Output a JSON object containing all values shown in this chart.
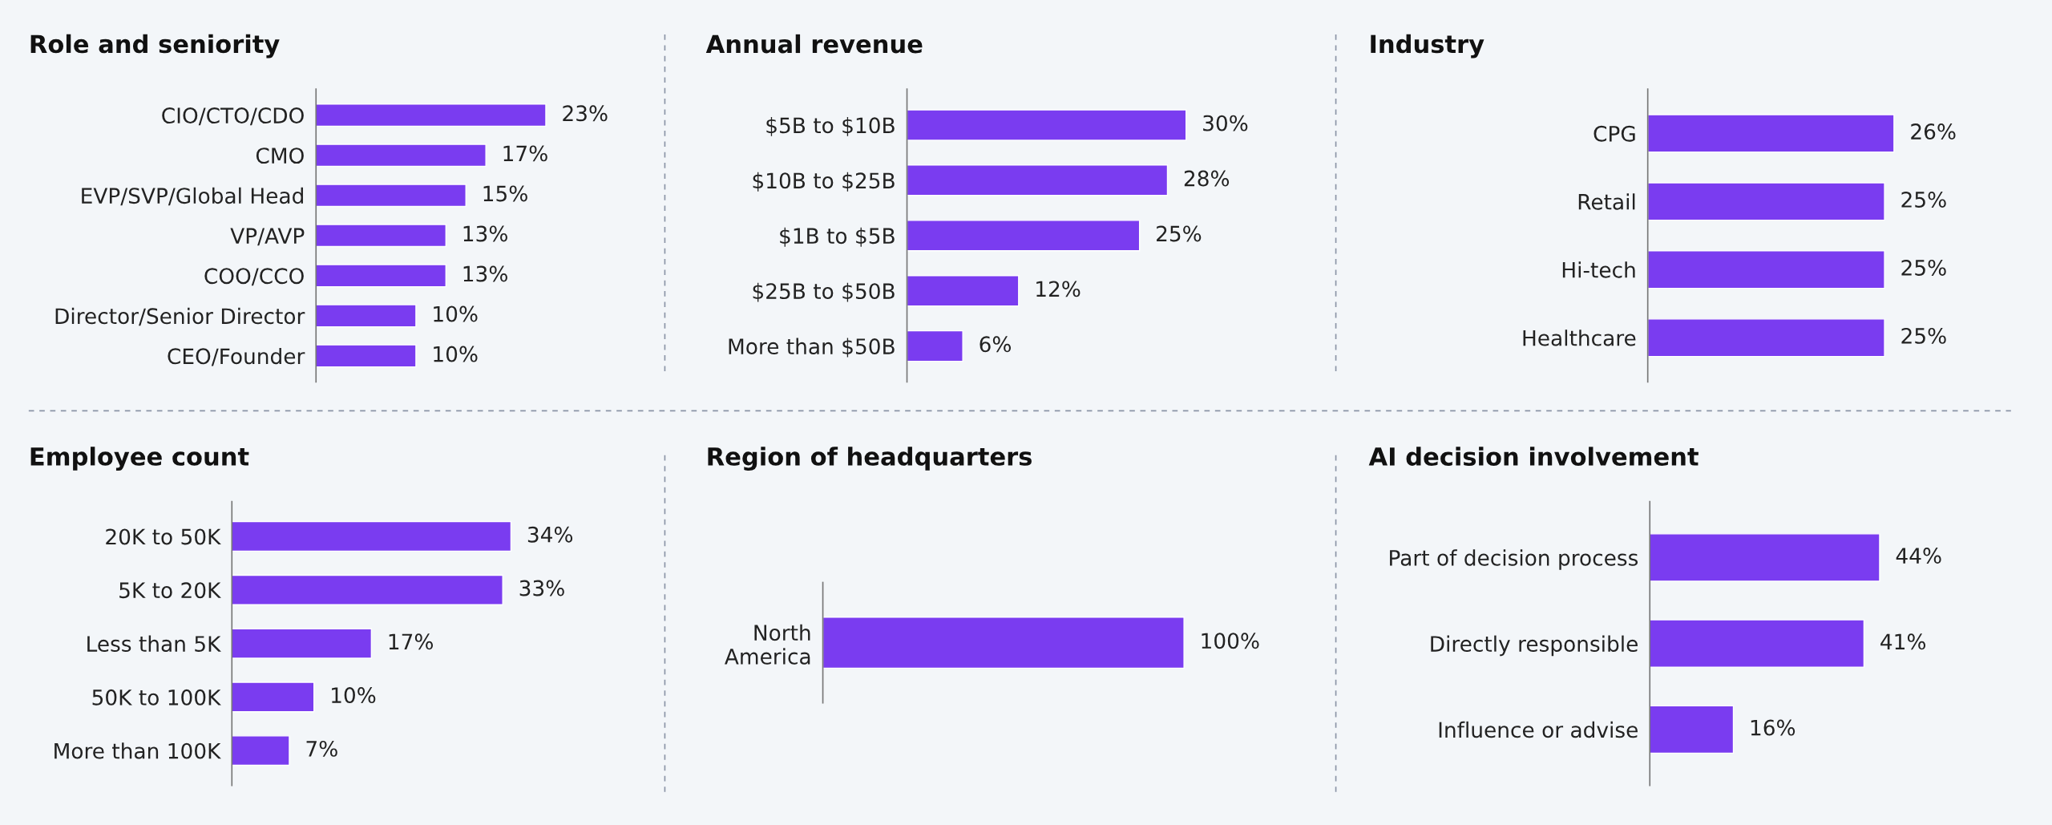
{
  "chart_data": [
    {
      "type": "bar",
      "orientation": "horizontal",
      "title": "Role and seniority",
      "categories": [
        "CIO/CTO/CDO",
        "CMO",
        "EVP/SVP/Global Head",
        "VP/AVP",
        "COO/CCO",
        "Director/Senior Director",
        "CEO/Founder"
      ],
      "values": [
        23,
        17,
        15,
        13,
        13,
        10,
        10
      ],
      "value_labels": [
        "23%",
        "17%",
        "15%",
        "13%",
        "13%",
        "10%",
        "10%"
      ],
      "color": "#7a3cf0",
      "tick_labels": "y",
      "grid": false,
      "legend": false
    },
    {
      "type": "bar",
      "orientation": "horizontal",
      "title": "Annual revenue",
      "categories": [
        "$5B to $10B",
        "$10B to $25B",
        "$1B to $5B",
        "$25B to $50B",
        "More than $50B"
      ],
      "values": [
        30,
        28,
        25,
        12,
        6
      ],
      "value_labels": [
        "30%",
        "28%",
        "25%",
        "12%",
        "6%"
      ],
      "color": "#7a3cf0",
      "tick_labels": "y",
      "grid": false,
      "legend": false
    },
    {
      "type": "bar",
      "orientation": "horizontal",
      "title": "Industry",
      "categories": [
        "CPG",
        "Retail",
        "Hi-tech",
        "Healthcare"
      ],
      "values": [
        26,
        25,
        25,
        25
      ],
      "value_labels": [
        "26%",
        "25%",
        "25%",
        "25%"
      ],
      "color": "#7a3cf0",
      "tick_labels": "y",
      "grid": false,
      "legend": false
    },
    {
      "type": "bar",
      "orientation": "horizontal",
      "title": "Employee count",
      "categories": [
        "20K to 50K",
        "5K to 20K",
        "Less than 5K",
        "50K to 100K",
        "More than 100K"
      ],
      "values": [
        34,
        33,
        17,
        10,
        7
      ],
      "value_labels": [
        "34%",
        "33%",
        "17%",
        "10%",
        "7%"
      ],
      "color": "#7a3cf0",
      "tick_labels": "y",
      "grid": false,
      "legend": false
    },
    {
      "type": "bar",
      "orientation": "horizontal",
      "title": "Region of headquarters",
      "categories": [
        "North\nAmerica"
      ],
      "values": [
        100
      ],
      "value_labels": [
        "100%"
      ],
      "color": "#7a3cf0",
      "tick_labels": "y",
      "grid": false,
      "legend": false
    },
    {
      "type": "bar",
      "orientation": "horizontal",
      "title": "AI decision involvement",
      "categories": [
        "Part of decision process",
        "Directly responsible",
        "Influence or advise"
      ],
      "values": [
        44,
        41,
        16
      ],
      "value_labels": [
        "44%",
        "41%",
        "16%"
      ],
      "color": "#7a3cf0",
      "tick_labels": "y",
      "grid": false,
      "legend": false
    }
  ]
}
